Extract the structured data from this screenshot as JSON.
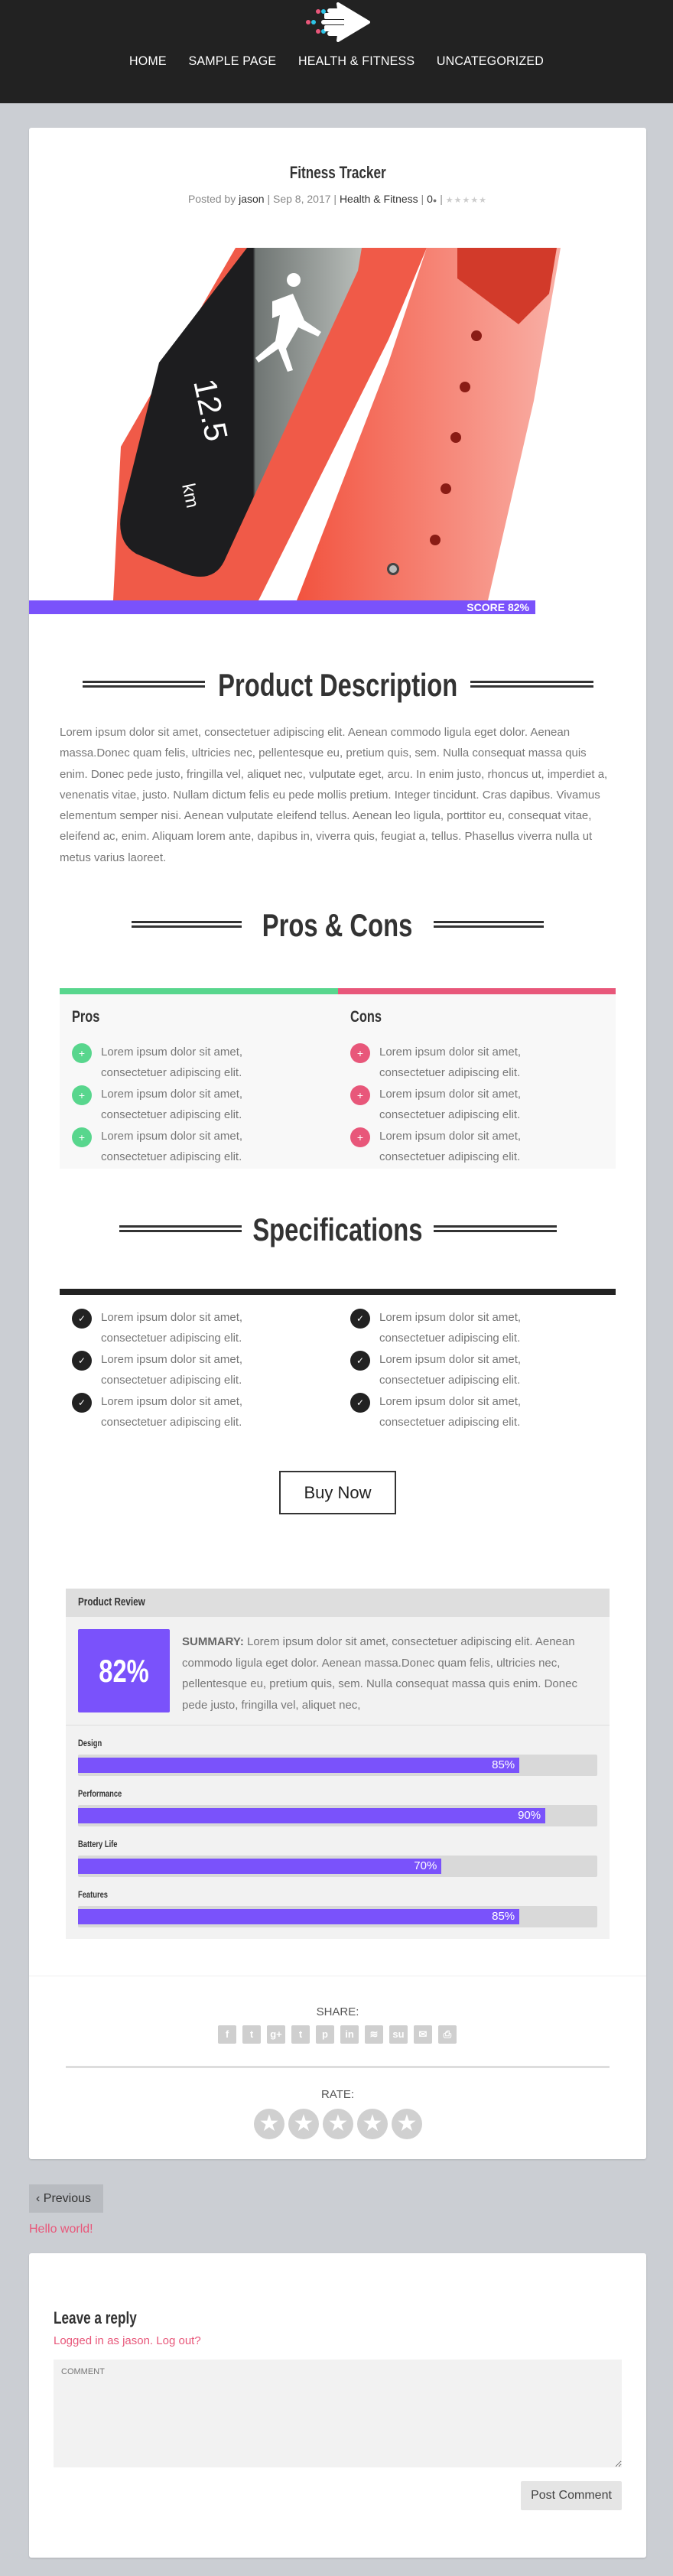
{
  "nav": {
    "items": [
      "HOME",
      "SAMPLE PAGE",
      "HEALTH & FITNESS",
      "UNCATEGORIZED"
    ]
  },
  "colors": {
    "accent": "#7a52fb",
    "pros": "#58d68d",
    "cons": "#e8577a",
    "header": "#222222",
    "link": "#e8577a"
  },
  "post": {
    "title": "Fitness Tracker",
    "meta": {
      "posted_by": "Posted by",
      "author": "jason",
      "date": "Sep 8, 2017",
      "category": "Health & Fitness",
      "comments": "0",
      "sep": "|"
    },
    "image": {
      "screen_value": "12.5",
      "screen_unit": "km"
    },
    "score_label": "SCORE 82%"
  },
  "description": {
    "heading": "Product Description",
    "text": "Lorem ipsum dolor sit amet, consectetuer adipiscing elit. Aenean commodo ligula eget dolor. Aenean massa.Donec quam felis, ultricies nec, pellentesque eu, pretium quis, sem. Nulla consequat massa quis enim. Donec pede justo, fringilla vel, aliquet nec, vulputate eget, arcu. In enim justo, rhoncus ut, imperdiet a, venenatis vitae, justo. Nullam dictum felis eu pede mollis pretium. Integer tincidunt. Cras dapibus. Vivamus elementum semper nisi. Aenean vulputate eleifend tellus. Aenean leo ligula, porttitor eu, consequat vitae, eleifend ac, enim. Aliquam lorem ante, dapibus in, viverra quis, feugiat a, tellus. Phasellus viverra nulla ut metus varius laoreet."
  },
  "proscons": {
    "heading": "Pros & Cons",
    "pros_title": "Pros",
    "cons_title": "Cons",
    "pros": [
      "Lorem ipsum dolor sit amet, consectetuer adipiscing elit.",
      "Lorem ipsum dolor sit amet, consectetuer adipiscing elit.",
      "Lorem ipsum dolor sit amet, consectetuer adipiscing elit."
    ],
    "cons": [
      "Lorem ipsum dolor sit amet, consectetuer adipiscing elit.",
      "Lorem ipsum dolor sit amet, consectetuer adipiscing elit.",
      "Lorem ipsum dolor sit amet, consectetuer adipiscing elit."
    ],
    "icon": "+"
  },
  "specs": {
    "heading": "Specifications",
    "icon": "✓",
    "left": [
      "Lorem ipsum dolor sit amet, consectetuer adipiscing elit.",
      "Lorem ipsum dolor sit amet, consectetuer adipiscing elit.",
      "Lorem ipsum dolor sit amet, consectetuer adipiscing elit."
    ],
    "right": [
      "Lorem ipsum dolor sit amet, consectetuer adipiscing elit.",
      "Lorem ipsum dolor sit amet, consectetuer adipiscing elit.",
      "Lorem ipsum dolor sit amet, consectetuer adipiscing elit."
    ]
  },
  "buy_label": "Buy Now",
  "review": {
    "title": "Product Review",
    "score": "82%",
    "summary_label": "SUMMARY:",
    "summary": " Lorem ipsum dolor sit amet, consectetuer adipiscing elit. Aenean commodo ligula eget dolor. Aenean massa.Donec quam felis, ultricies nec, pellentesque eu, pretium quis, sem. Nulla consequat massa quis enim. Donec pede justo, fringilla vel, aliquet nec,",
    "criteria": [
      {
        "label": "Design",
        "value": 85,
        "text": "85%"
      },
      {
        "label": "Performance",
        "value": 90,
        "text": "90%"
      },
      {
        "label": "Battery Life",
        "value": 70,
        "text": "70%"
      },
      {
        "label": "Features",
        "value": 85,
        "text": "85%"
      }
    ]
  },
  "share": {
    "label": "SHARE:",
    "icons": [
      {
        "name": "facebook-icon",
        "glyph": "f"
      },
      {
        "name": "twitter-icon",
        "glyph": "t"
      },
      {
        "name": "google-plus-icon",
        "glyph": "g+"
      },
      {
        "name": "tumblr-icon",
        "glyph": "t"
      },
      {
        "name": "pinterest-icon",
        "glyph": "p"
      },
      {
        "name": "linkedin-icon",
        "glyph": "in"
      },
      {
        "name": "buffer-icon",
        "glyph": "≋"
      },
      {
        "name": "stumbleupon-icon",
        "glyph": "su"
      },
      {
        "name": "email-icon",
        "glyph": "✉"
      },
      {
        "name": "print-icon",
        "glyph": "⎙"
      }
    ]
  },
  "rate": {
    "label": "RATE:",
    "stars": 5,
    "rating": 0
  },
  "pagination": {
    "previous": "Previous",
    "previous_post": "Hello world!"
  },
  "comment": {
    "heading": "Leave a reply",
    "logged_in": "Logged in as jason.",
    "logout": "Log out?",
    "placeholder": "COMMENT",
    "submit": "Post Comment"
  }
}
